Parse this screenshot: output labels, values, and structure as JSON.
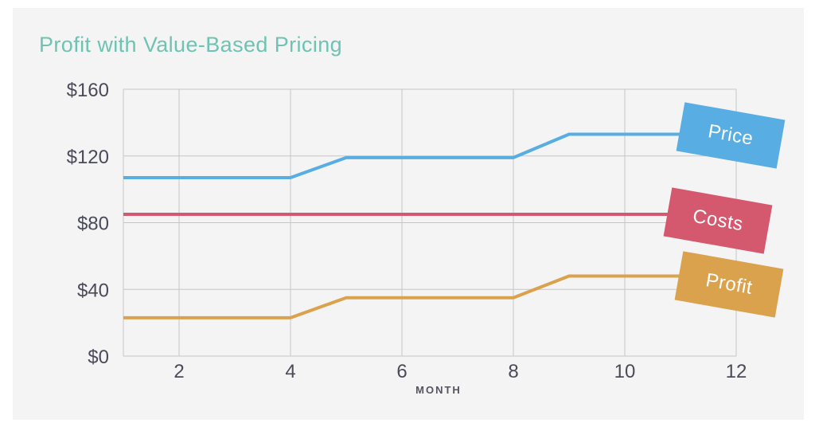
{
  "page": {
    "background": "#ffffff",
    "card_background": "#f4f4f5"
  },
  "title": {
    "text": "Profit with Value-Based Pricing",
    "color": "#6ec3b2"
  },
  "chart_data": {
    "type": "line",
    "title": "Profit with Value-Based Pricing",
    "xlabel": "MONTH",
    "ylabel": "",
    "x": [
      1,
      2,
      3,
      4,
      5,
      6,
      7,
      8,
      9,
      10,
      11,
      12
    ],
    "xlim": [
      1,
      12
    ],
    "ylim": [
      0,
      160
    ],
    "xticks": {
      "values": [
        2,
        4,
        6,
        8,
        10,
        12
      ],
      "labels": [
        "2",
        "4",
        "6",
        "8",
        "10",
        "12"
      ]
    },
    "yticks": {
      "values": [
        160,
        120,
        80,
        40,
        0
      ],
      "labels": [
        "$160",
        "$120",
        "$80",
        "$40",
        "$0"
      ]
    },
    "grid": true,
    "legend_position": "rotated-label-boxes-right",
    "axis_text_color": "#4a4a58",
    "grid_color": "#c6c6c8",
    "series": [
      {
        "name": "Price",
        "color": "#58ade2",
        "values": [
          107,
          107,
          107,
          107,
          119,
          119,
          119,
          119,
          133,
          133,
          133,
          133
        ]
      },
      {
        "name": "Costs",
        "color": "#d5596e",
        "values": [
          85,
          85,
          85,
          85,
          85,
          85,
          85,
          85,
          85,
          85,
          85,
          85
        ]
      },
      {
        "name": "Profit",
        "color": "#dba24e",
        "values": [
          23,
          23,
          23,
          23,
          35,
          35,
          35,
          35,
          48,
          48,
          48,
          48
        ]
      }
    ]
  }
}
